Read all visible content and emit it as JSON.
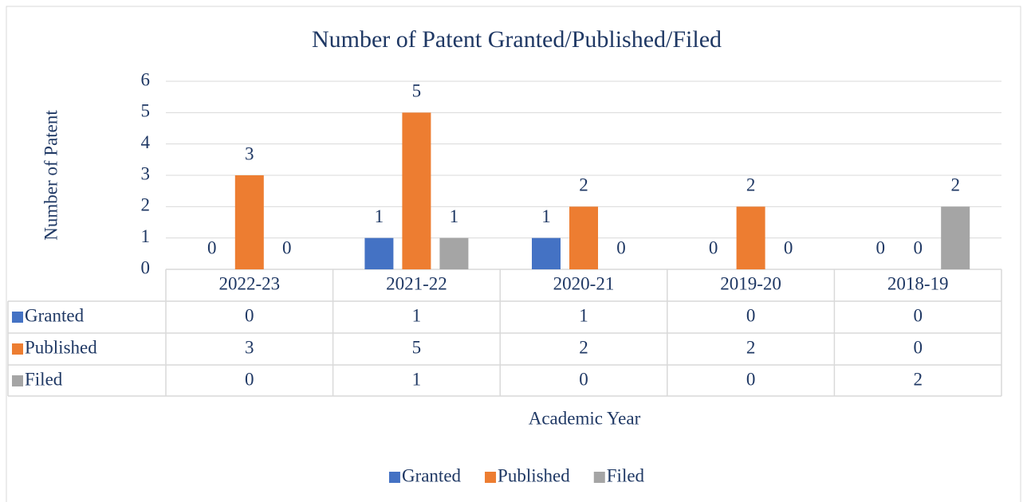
{
  "chart_data": {
    "type": "bar",
    "title": "Number of Patent Granted/Published/Filed",
    "x_label": "Academic Year",
    "y_label": "Number of Patent",
    "categories": [
      "2022-23",
      "2021-22",
      "2020-21",
      "2019-20",
      "2018-19"
    ],
    "series": [
      {
        "name": "Granted",
        "color": "#4472c4",
        "values": [
          0,
          1,
          1,
          0,
          0
        ]
      },
      {
        "name": "Published",
        "color": "#ed7d31",
        "values": [
          3,
          5,
          2,
          2,
          0
        ]
      },
      {
        "name": "Filed",
        "color": "#a5a5a5",
        "values": [
          0,
          1,
          0,
          0,
          2
        ]
      }
    ],
    "ylim": [
      0,
      6
    ],
    "yticks": [
      0,
      1,
      2,
      3,
      4,
      5,
      6
    ],
    "grid": true,
    "legend": "bottom"
  }
}
